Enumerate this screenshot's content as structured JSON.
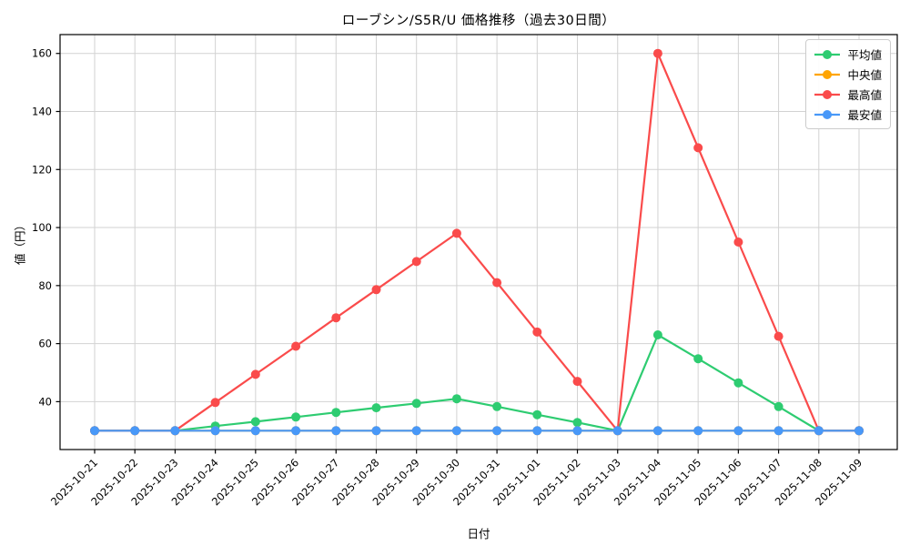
{
  "chart_data": {
    "type": "line",
    "title": "ローブシン/S5R/U 価格推移（過去30日間）",
    "xlabel": "日付",
    "ylabel": "値（円）",
    "categories": [
      "2025-10-21",
      "2025-10-22",
      "2025-10-23",
      "2025-10-24",
      "2025-10-25",
      "2025-10-26",
      "2025-10-27",
      "2025-10-28",
      "2025-10-29",
      "2025-10-30",
      "2025-10-31",
      "2025-11-01",
      "2025-11-02",
      "2025-11-03",
      "2025-11-04",
      "2025-11-05",
      "2025-11-06",
      "2025-11-07",
      "2025-11-08",
      "2025-11-09"
    ],
    "series": [
      {
        "name": "平均値",
        "color": "#2ecc71",
        "values": [
          30,
          30,
          30,
          31.6,
          33.1,
          34.7,
          36.3,
          37.9,
          39.4,
          41,
          38.3,
          35.5,
          32.8,
          30,
          63,
          54.8,
          46.5,
          38.3,
          30,
          30
        ]
      },
      {
        "name": "中央値",
        "color": "#ffa502",
        "values": [
          30,
          30,
          30,
          30,
          30,
          30,
          30,
          30,
          30,
          30,
          30,
          30,
          30,
          30,
          30,
          30,
          30,
          30,
          30,
          30
        ]
      },
      {
        "name": "最高値",
        "color": "#fa4b4b",
        "values": [
          30,
          30,
          30,
          39.7,
          49.4,
          59.1,
          68.9,
          78.6,
          88.3,
          98,
          81,
          64,
          47,
          30,
          160,
          127.5,
          95,
          62.5,
          30,
          30
        ]
      },
      {
        "name": "最安値",
        "color": "#4898f8",
        "values": [
          30,
          30,
          30,
          30,
          30,
          30,
          30,
          30,
          30,
          30,
          30,
          30,
          30,
          30,
          30,
          30,
          30,
          30,
          30,
          30
        ]
      }
    ],
    "yticks": [
      40,
      60,
      80,
      100,
      120,
      140,
      160
    ],
    "ylim": [
      23.5,
      166.5
    ],
    "grid": true,
    "grid_color": "#d2d2d2",
    "frame_color": "#000000",
    "legend_position": "top-right",
    "marker": "circle"
  }
}
